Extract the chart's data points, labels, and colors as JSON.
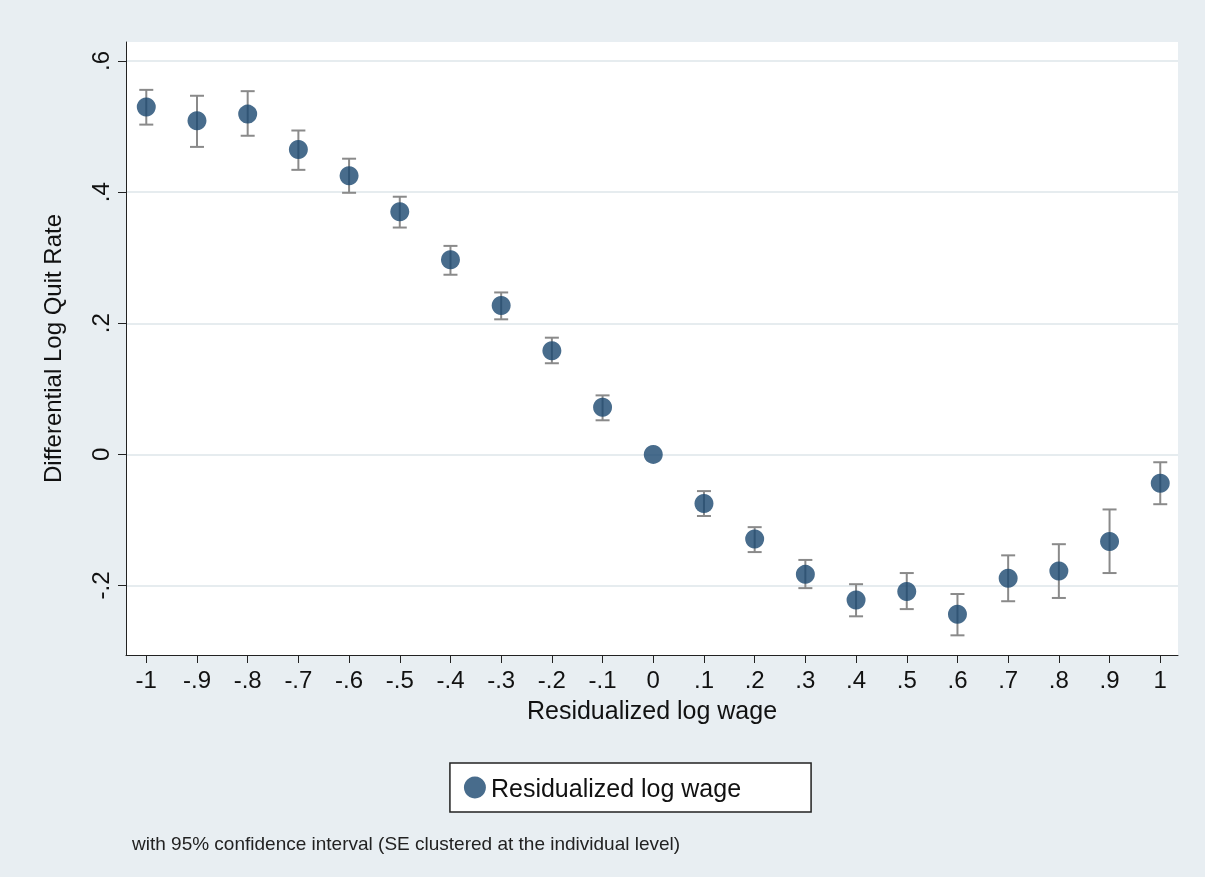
{
  "chart_data": {
    "type": "scatter",
    "xlabel": "Residualized log wage",
    "ylabel": "Differential Log Quit Rate",
    "x": [
      -1,
      -0.9,
      -0.8,
      -0.7,
      -0.6,
      -0.5,
      -0.4,
      -0.3,
      -0.2,
      -0.1,
      0,
      0.1,
      0.2,
      0.3,
      0.4,
      0.5,
      0.6,
      0.7,
      0.8,
      0.9,
      1
    ],
    "series": [
      {
        "name": "Residualized log wage",
        "color": "#1a476f",
        "values": [
          0.53,
          0.509,
          0.519,
          0.465,
          0.425,
          0.37,
          0.297,
          0.227,
          0.158,
          0.072,
          0,
          -0.075,
          -0.129,
          -0.183,
          -0.222,
          -0.209,
          -0.244,
          -0.189,
          -0.178,
          -0.133,
          -0.044
        ],
        "errors": [
          [
            0.503,
            0.556
          ],
          [
            0.469,
            0.547
          ],
          [
            0.486,
            0.554
          ],
          [
            0.434,
            0.494
          ],
          [
            0.399,
            0.451
          ],
          [
            0.346,
            0.393
          ],
          [
            0.274,
            0.318
          ],
          [
            0.206,
            0.247
          ],
          [
            0.139,
            0.178
          ],
          [
            0.052,
            0.09
          ],
          null,
          [
            -0.094,
            -0.056
          ],
          [
            -0.149,
            -0.111
          ],
          [
            -0.204,
            -0.161
          ],
          [
            -0.247,
            -0.198
          ],
          [
            -0.236,
            -0.181
          ],
          [
            -0.276,
            -0.213
          ],
          [
            -0.224,
            -0.154
          ],
          [
            -0.219,
            -0.137
          ],
          [
            -0.181,
            -0.084
          ],
          [
            -0.076,
            -0.012
          ]
        ]
      }
    ],
    "xlim": [
      -1.04,
      1.035
    ],
    "xticks": [
      -1,
      {
        "value": -0.9,
        "label": "-.9"
      },
      {
        "value": -0.8,
        "label": "-.8"
      },
      {
        "value": -0.7,
        "label": "-.7"
      },
      {
        "value": -0.6,
        "label": "-.6"
      },
      {
        "value": -0.5,
        "label": "-.5"
      },
      {
        "value": -0.4,
        "label": "-.4"
      },
      {
        "value": -0.3,
        "label": "-.3"
      },
      {
        "value": -0.2,
        "label": "-.2"
      },
      {
        "value": -0.1,
        "label": "-.1"
      },
      0,
      {
        "value": 0.1,
        "label": ".1"
      },
      {
        "value": 0.2,
        "label": ".2"
      },
      {
        "value": 0.3,
        "label": ".3"
      },
      {
        "value": 0.4,
        "label": ".4"
      },
      {
        "value": 0.5,
        "label": ".5"
      },
      {
        "value": 0.6,
        "label": ".6"
      },
      {
        "value": 0.7,
        "label": ".7"
      },
      {
        "value": 0.8,
        "label": ".8"
      },
      {
        "value": 0.9,
        "label": ".9"
      },
      1
    ],
    "ylim": [
      -0.306,
      0.629
    ],
    "yticks": [
      {
        "value": -0.2,
        "label": "-.2"
      },
      0,
      {
        "value": 0.2,
        "label": ".2"
      },
      {
        "value": 0.4,
        "label": ".4"
      },
      {
        "value": 0.6,
        "label": ".6"
      }
    ],
    "grid": "y",
    "legend": "bottom",
    "marker": "circle",
    "annotations": [
      "with 95% confidence interval (SE clustered at the individual level)"
    ]
  }
}
